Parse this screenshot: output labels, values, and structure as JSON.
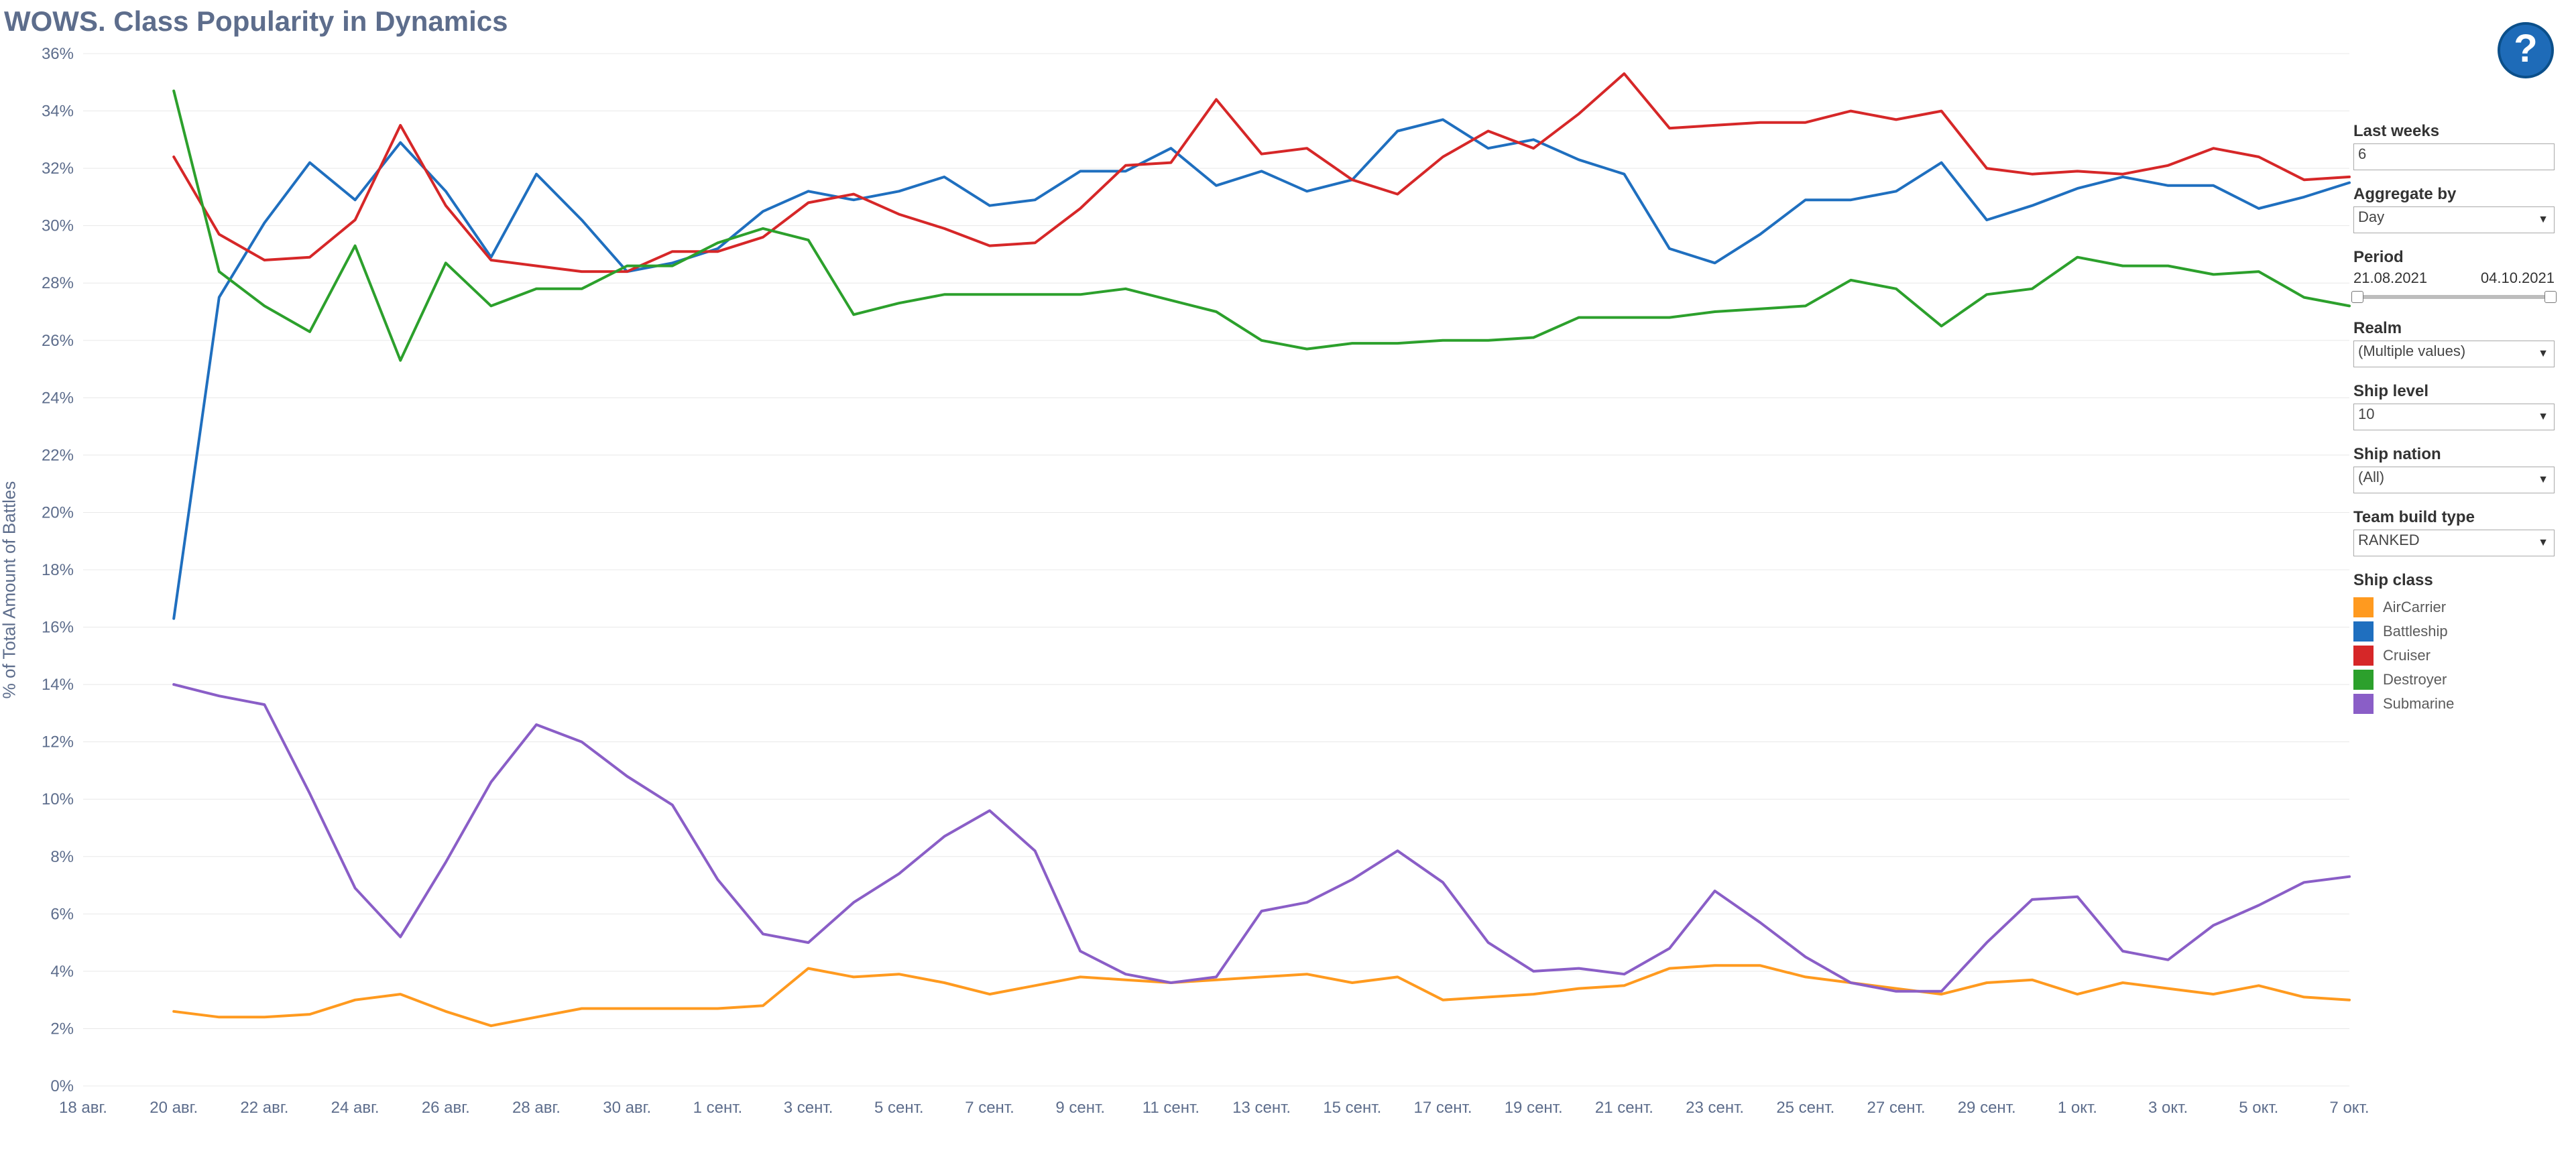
{
  "title": "WOWS. Class Popularity in Dynamics",
  "chart": {
    "type": "line",
    "y_axis_label": "% of Total Amount of Battles",
    "ylim": [
      0,
      36
    ],
    "ytick_step": 2,
    "ytick_suffix": "%",
    "axis_text_color": "#5d6d8c",
    "axis_text_fontsize": 24,
    "line_width": 4,
    "grid_color": "#e8e8e8",
    "background_color": "#ffffff",
    "x_labels_visible": [
      "18 авг.",
      "20 авг.",
      "22 авг.",
      "24 авг.",
      "26 авг.",
      "28 авг.",
      "30 авг.",
      "1 сент.",
      "3 сент.",
      "5 сент.",
      "7 сент.",
      "9 сент.",
      "11 сент.",
      "13 сент.",
      "15 сент.",
      "17 сент.",
      "19 сент.",
      "21 сент.",
      "23 сент.",
      "25 сент.",
      "27 сент.",
      "29 сент.",
      "1 окт.",
      "3 окт.",
      "5 окт.",
      "7 окт."
    ],
    "x_index_range": [
      0,
      50
    ],
    "series": [
      {
        "name": "AirCarrier",
        "color": "#ff9a1f",
        "values": [
          null,
          null,
          2.6,
          2.4,
          2.4,
          2.5,
          3.0,
          3.2,
          2.6,
          2.1,
          2.4,
          2.7,
          2.7,
          2.7,
          2.7,
          2.8,
          4.1,
          3.8,
          3.9,
          3.6,
          3.2,
          3.5,
          3.8,
          3.7,
          3.6,
          3.7,
          3.8,
          3.9,
          3.6,
          3.8,
          3.0,
          3.1,
          3.2,
          3.4,
          3.5,
          4.1,
          4.2,
          4.2,
          3.8,
          3.6,
          3.4,
          3.2,
          3.6,
          3.7,
          3.2,
          3.6,
          3.4,
          3.2,
          3.5,
          3.1,
          3.0
        ]
      },
      {
        "name": "Battleship",
        "color": "#1f6fbf",
        "values": [
          null,
          null,
          16.3,
          27.5,
          30.1,
          32.2,
          30.9,
          32.9,
          31.2,
          28.9,
          31.8,
          30.2,
          28.4,
          28.7,
          29.2,
          30.5,
          31.2,
          30.9,
          31.2,
          31.7,
          30.7,
          30.9,
          31.9,
          31.9,
          32.7,
          31.4,
          31.9,
          31.2,
          31.6,
          33.3,
          33.7,
          32.7,
          33.0,
          32.3,
          31.8,
          29.2,
          28.7,
          29.7,
          30.9,
          30.9,
          31.2,
          32.2,
          30.2,
          30.7,
          31.3,
          31.7,
          31.4,
          31.4,
          30.6,
          31.0,
          31.5
        ]
      },
      {
        "name": "Cruiser",
        "color": "#d62728",
        "values": [
          null,
          null,
          32.4,
          29.7,
          28.8,
          28.9,
          30.2,
          33.5,
          30.7,
          28.8,
          28.6,
          28.4,
          28.4,
          29.1,
          29.1,
          29.6,
          30.8,
          31.1,
          30.4,
          29.9,
          29.3,
          29.4,
          30.6,
          32.1,
          32.2,
          34.4,
          32.5,
          32.7,
          31.6,
          31.1,
          32.4,
          33.3,
          32.7,
          33.9,
          35.3,
          33.4,
          33.5,
          33.6,
          33.6,
          34.0,
          33.7,
          34.0,
          32.0,
          31.8,
          31.9,
          31.8,
          32.1,
          32.7,
          32.4,
          31.6,
          31.7
        ]
      },
      {
        "name": "Destroyer",
        "color": "#2ca02c",
        "values": [
          null,
          null,
          34.7,
          28.4,
          27.2,
          26.3,
          29.3,
          25.3,
          28.7,
          27.2,
          27.8,
          27.8,
          28.6,
          28.6,
          29.4,
          29.9,
          29.5,
          26.9,
          27.3,
          27.6,
          27.6,
          27.6,
          27.6,
          27.8,
          27.4,
          27.0,
          26.0,
          25.7,
          25.9,
          25.9,
          26.0,
          26.0,
          26.1,
          26.8,
          26.8,
          26.8,
          27.0,
          27.1,
          27.2,
          28.1,
          27.8,
          26.5,
          27.6,
          27.8,
          28.9,
          28.6,
          28.6,
          28.3,
          28.4,
          27.5,
          27.2
        ]
      },
      {
        "name": "Submarine",
        "color": "#8a5ec7",
        "values": [
          null,
          null,
          14.0,
          13.6,
          13.3,
          10.2,
          6.9,
          5.2,
          7.8,
          10.6,
          12.6,
          12.0,
          10.8,
          9.8,
          7.2,
          5.3,
          5.0,
          6.4,
          7.4,
          8.7,
          9.6,
          8.2,
          4.7,
          3.9,
          3.6,
          3.8,
          6.1,
          6.4,
          7.2,
          8.2,
          7.1,
          5.0,
          4.0,
          4.1,
          3.9,
          4.8,
          6.8,
          5.7,
          4.5,
          3.6,
          3.3,
          3.3,
          5.0,
          6.5,
          6.6,
          4.7,
          4.4,
          5.6,
          6.3,
          7.1,
          7.3
        ]
      }
    ]
  },
  "controls": {
    "last_weeks": {
      "label": "Last weeks",
      "value": "6"
    },
    "aggregate_by": {
      "label": "Aggregate by",
      "value": "Day"
    },
    "period": {
      "label": "Period",
      "from": "21.08.2021",
      "to": "04.10.2021"
    },
    "realm": {
      "label": "Realm",
      "value": "(Multiple values)"
    },
    "ship_level": {
      "label": "Ship level",
      "value": "10"
    },
    "ship_nation": {
      "label": "Ship nation",
      "value": "(All)"
    },
    "team_build_type": {
      "label": "Team build type",
      "value": "RANKED"
    }
  },
  "legend": {
    "title": "Ship class",
    "items": [
      {
        "label": "AirCarrier",
        "color": "#ff9a1f"
      },
      {
        "label": "Battleship",
        "color": "#1f6fbf"
      },
      {
        "label": "Cruiser",
        "color": "#d62728"
      },
      {
        "label": "Destroyer",
        "color": "#2ca02c"
      },
      {
        "label": "Submarine",
        "color": "#8a5ec7"
      }
    ]
  },
  "help_icon": {
    "fill": "#1e6bb8",
    "text": "?"
  }
}
